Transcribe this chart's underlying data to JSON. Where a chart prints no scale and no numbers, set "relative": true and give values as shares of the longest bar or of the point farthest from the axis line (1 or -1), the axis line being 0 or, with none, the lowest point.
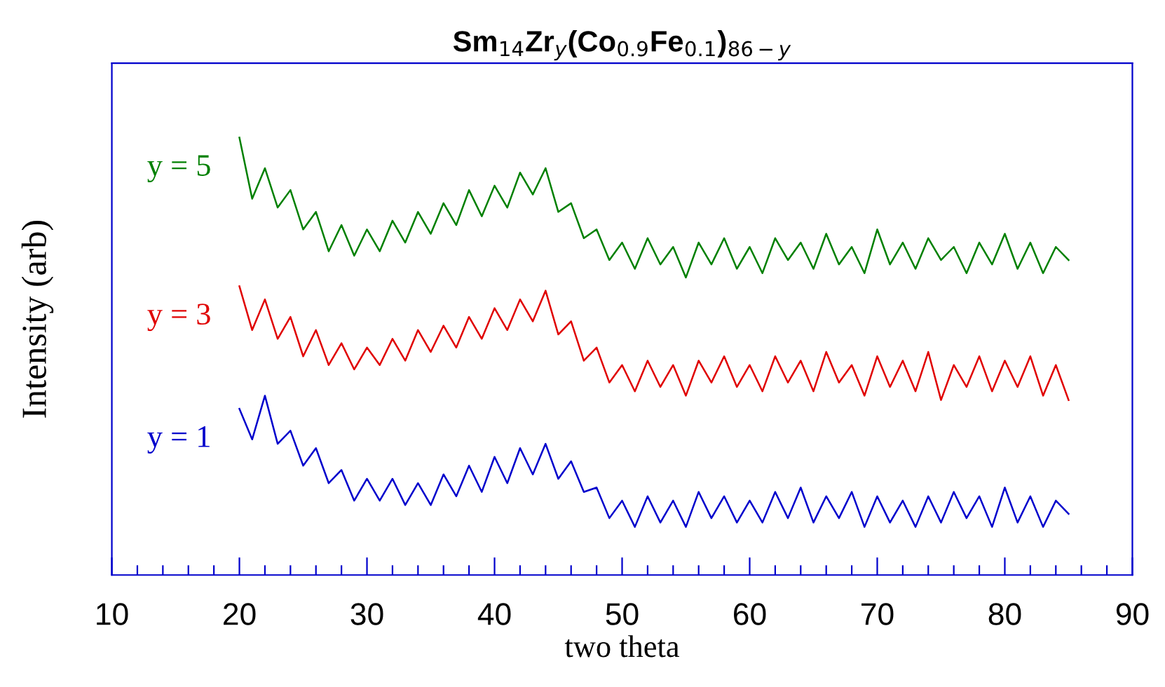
{
  "chart_data": {
    "type": "line",
    "title": "Sm$_{14}$Zr$_{y}$(Co$_{0.9}$Fe$_{0.1}$)$_{86−y}$",
    "xlabel": "two theta",
    "ylabel": "Intensity (arb)",
    "relative": true,
    "grid": false,
    "legend": false,
    "tick_labels": "x",
    "marker": "none",
    "line_style": "solid",
    "xlim": [
      10,
      90
    ],
    "xticks": [
      10,
      {
        "value": 12,
        "label": null
      },
      {
        "value": 14,
        "label": null
      },
      {
        "value": 16,
        "label": null
      },
      {
        "value": 18,
        "label": null
      },
      20,
      {
        "value": 22,
        "label": null
      },
      {
        "value": 24,
        "label": null
      },
      {
        "value": 26,
        "label": null
      },
      {
        "value": 28,
        "label": null
      },
      30,
      {
        "value": 32,
        "label": null
      },
      {
        "value": 34,
        "label": null
      },
      {
        "value": 36,
        "label": null
      },
      {
        "value": 38,
        "label": null
      },
      40,
      {
        "value": 42,
        "label": null
      },
      {
        "value": 44,
        "label": null
      },
      {
        "value": 46,
        "label": null
      },
      {
        "value": 48,
        "label": null
      },
      50,
      {
        "value": 52,
        "label": null
      },
      {
        "value": 54,
        "label": null
      },
      {
        "value": 56,
        "label": null
      },
      {
        "value": 58,
        "label": null
      },
      60,
      {
        "value": 62,
        "label": null
      },
      {
        "value": 64,
        "label": null
      },
      {
        "value": 66,
        "label": null
      },
      {
        "value": 68,
        "label": null
      },
      70,
      {
        "value": 72,
        "label": null
      },
      {
        "value": 74,
        "label": null
      },
      {
        "value": 76,
        "label": null
      },
      {
        "value": 78,
        "label": null
      },
      80,
      {
        "value": 82,
        "label": null
      },
      {
        "value": 84,
        "label": null
      },
      {
        "value": 86,
        "label": null
      },
      {
        "value": 88,
        "label": null
      },
      90
    ],
    "x": [
      20,
      21,
      22,
      23,
      24,
      25,
      26,
      27,
      28,
      29,
      30,
      31,
      32,
      33,
      34,
      35,
      36,
      37,
      38,
      39,
      40,
      41,
      42,
      43,
      44,
      45,
      46,
      47,
      48,
      49,
      50,
      51,
      52,
      53,
      54,
      55,
      56,
      57,
      58,
      59,
      60,
      61,
      62,
      63,
      64,
      65,
      66,
      67,
      68,
      69,
      70,
      71,
      72,
      73,
      74,
      75,
      76,
      77,
      78,
      79,
      80,
      81,
      82,
      83,
      84,
      85
    ],
    "series": [
      {
        "name": "y = 5",
        "color": "#008000",
        "values": [
          1.0,
          0.86,
          0.93,
          0.84,
          0.88,
          0.79,
          0.83,
          0.74,
          0.8,
          0.73,
          0.79,
          0.74,
          0.81,
          0.76,
          0.83,
          0.78,
          0.85,
          0.8,
          0.88,
          0.82,
          0.89,
          0.84,
          0.92,
          0.87,
          0.93,
          0.83,
          0.85,
          0.77,
          0.79,
          0.72,
          0.76,
          0.7,
          0.77,
          0.71,
          0.75,
          0.68,
          0.76,
          0.71,
          0.77,
          0.7,
          0.75,
          0.69,
          0.77,
          0.72,
          0.76,
          0.7,
          0.78,
          0.71,
          0.75,
          0.69,
          0.79,
          0.71,
          0.76,
          0.7,
          0.77,
          0.72,
          0.75,
          0.69,
          0.76,
          0.71,
          0.78,
          0.7,
          0.76,
          0.69,
          0.75,
          0.72
        ]
      },
      {
        "name": "y = 3",
        "color": "#e00000",
        "values": [
          0.66,
          0.56,
          0.63,
          0.54,
          0.59,
          0.5,
          0.56,
          0.48,
          0.53,
          0.47,
          0.52,
          0.48,
          0.54,
          0.49,
          0.56,
          0.51,
          0.57,
          0.52,
          0.59,
          0.54,
          0.61,
          0.56,
          0.63,
          0.58,
          0.65,
          0.55,
          0.58,
          0.49,
          0.52,
          0.44,
          0.48,
          0.42,
          0.49,
          0.43,
          0.48,
          0.41,
          0.49,
          0.44,
          0.5,
          0.43,
          0.48,
          0.42,
          0.5,
          0.44,
          0.49,
          0.42,
          0.51,
          0.44,
          0.48,
          0.41,
          0.5,
          0.43,
          0.49,
          0.42,
          0.51,
          0.4,
          0.48,
          0.43,
          0.5,
          0.42,
          0.49,
          0.43,
          0.5,
          0.41,
          0.48,
          0.4
        ]
      },
      {
        "name": "y = 1",
        "color": "#0000cc",
        "values": [
          0.38,
          0.31,
          0.41,
          0.3,
          0.33,
          0.25,
          0.29,
          0.21,
          0.24,
          0.17,
          0.22,
          0.17,
          0.22,
          0.16,
          0.21,
          0.16,
          0.23,
          0.18,
          0.25,
          0.19,
          0.27,
          0.21,
          0.29,
          0.23,
          0.3,
          0.22,
          0.26,
          0.19,
          0.2,
          0.13,
          0.17,
          0.11,
          0.18,
          0.12,
          0.17,
          0.11,
          0.19,
          0.13,
          0.18,
          0.12,
          0.17,
          0.12,
          0.19,
          0.13,
          0.2,
          0.12,
          0.18,
          0.13,
          0.19,
          0.11,
          0.18,
          0.12,
          0.17,
          0.11,
          0.18,
          0.12,
          0.19,
          0.13,
          0.18,
          0.11,
          0.2,
          0.12,
          0.18,
          0.11,
          0.17,
          0.14
        ]
      }
    ]
  }
}
